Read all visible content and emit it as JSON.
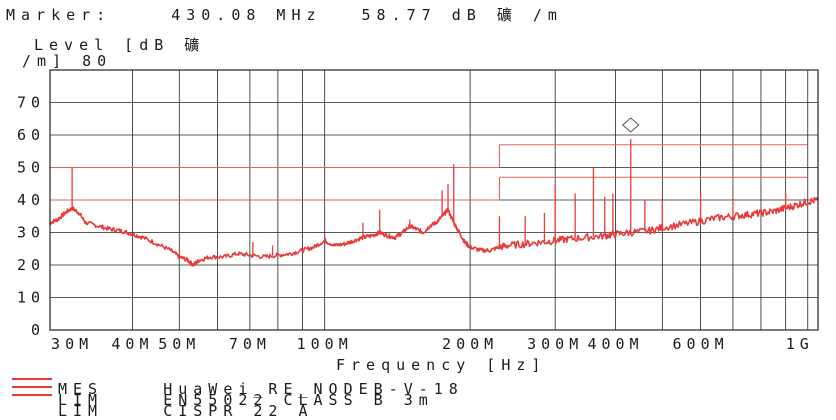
{
  "header": {
    "marker_label": "Marker:",
    "marker_freq": "430.08 MHz",
    "marker_level": "58.77 dB",
    "marker_unit_glyph": "礦",
    "marker_unit_tail": "/m",
    "level_label_line1": "Level [dB 礦",
    "level_label_line2": "/m] 80"
  },
  "legend": {
    "items": [
      {
        "kind": "MES",
        "name": "HuaWei_RE_NODEB-V-18"
      },
      {
        "kind": "LIM",
        "name": "EN55022 CLASS B 3m"
      },
      {
        "kind": "LIM",
        "name": "CISPR 22 A"
      }
    ]
  },
  "colors": {
    "trace": "#e83a3a",
    "grid": "#222222",
    "limit": "#e06060",
    "marker": "#555555"
  },
  "chart_data": {
    "type": "line",
    "title": "",
    "xlabel": "Frequency [Hz]",
    "ylabel": "Level [dB 礦/m]",
    "x_scale": "log",
    "xlim_mhz": [
      27,
      1050
    ],
    "ylim": [
      0,
      80
    ],
    "y_ticks": [
      0,
      10,
      20,
      30,
      40,
      50,
      60,
      70,
      80
    ],
    "y_tick_labels": [
      "0",
      "10",
      "20",
      "30",
      "40",
      "50",
      "60",
      "70",
      "80"
    ],
    "x_ticks_mhz": [
      30,
      40,
      50,
      70,
      100,
      200,
      300,
      400,
      600,
      1000
    ],
    "x_tick_labels": [
      "30M",
      "40M",
      "50M",
      "70M",
      "100M",
      "200M",
      "300M",
      "400M",
      "600M",
      "1G"
    ],
    "grid": true,
    "marker": {
      "freq_mhz": 430.08,
      "level": 58.77
    },
    "limits": [
      {
        "name": "EN55022 CLASS B 3m",
        "segments": [
          {
            "x": [
              27,
              230
            ],
            "y": 40
          },
          {
            "x": [
              230,
              1000
            ],
            "y": 47
          }
        ]
      },
      {
        "name": "CISPR 22 A",
        "segments": [
          {
            "x": [
              27,
              230
            ],
            "y": 50
          },
          {
            "x": [
              230,
              1000
            ],
            "y": 57
          }
        ]
      }
    ],
    "series": [
      {
        "name": "HuaWei_RE_NODEB-V-18",
        "points": [
          [
            27,
            33
          ],
          [
            28,
            34
          ],
          [
            29,
            36
          ],
          [
            30,
            37.5
          ],
          [
            31,
            36
          ],
          [
            32,
            33
          ],
          [
            34,
            32
          ],
          [
            36,
            31
          ],
          [
            38,
            30.5
          ],
          [
            40,
            29.5
          ],
          [
            42,
            28.5
          ],
          [
            45,
            26.5
          ],
          [
            48,
            24.5
          ],
          [
            50,
            22.5
          ],
          [
            52,
            21.5
          ],
          [
            53.5,
            20
          ],
          [
            55,
            21.5
          ],
          [
            58,
            22.5
          ],
          [
            62,
            22.5
          ],
          [
            66,
            23.5
          ],
          [
            70,
            23
          ],
          [
            75,
            22.5
          ],
          [
            80,
            23
          ],
          [
            85,
            23.5
          ],
          [
            90,
            24.5
          ],
          [
            95,
            25.5
          ],
          [
            100,
            27.5
          ],
          [
            105,
            26
          ],
          [
            110,
            26.5
          ],
          [
            115,
            27.5
          ],
          [
            120,
            28.5
          ],
          [
            125,
            29
          ],
          [
            130,
            30
          ],
          [
            135,
            29
          ],
          [
            140,
            28.5
          ],
          [
            145,
            30
          ],
          [
            150,
            32
          ],
          [
            155,
            31
          ],
          [
            160,
            30
          ],
          [
            165,
            32
          ],
          [
            170,
            33
          ],
          [
            175,
            35
          ],
          [
            180,
            37
          ],
          [
            185,
            33
          ],
          [
            190,
            30
          ],
          [
            195,
            27
          ],
          [
            200,
            25.5
          ],
          [
            210,
            24.5
          ],
          [
            220,
            24.5
          ],
          [
            230,
            25.5
          ],
          [
            240,
            26
          ],
          [
            260,
            26.5
          ],
          [
            280,
            27
          ],
          [
            300,
            27.5
          ],
          [
            320,
            28
          ],
          [
            350,
            28.5
          ],
          [
            380,
            29
          ],
          [
            400,
            29.5
          ],
          [
            430,
            30
          ],
          [
            470,
            30.5
          ],
          [
            500,
            31.5
          ],
          [
            550,
            32.5
          ],
          [
            600,
            33.5
          ],
          [
            650,
            34.5
          ],
          [
            700,
            35
          ],
          [
            750,
            35.5
          ],
          [
            800,
            36
          ],
          [
            850,
            36.5
          ],
          [
            900,
            37.5
          ],
          [
            950,
            38.5
          ],
          [
            1000,
            39.5
          ],
          [
            1050,
            40
          ]
        ],
        "spikes": [
          [
            30,
            50
          ],
          [
            71,
            27
          ],
          [
            78,
            26
          ],
          [
            100,
            29
          ],
          [
            120,
            33
          ],
          [
            130,
            37
          ],
          [
            150,
            34
          ],
          [
            175,
            43
          ],
          [
            180,
            45
          ],
          [
            185,
            51
          ],
          [
            230,
            35
          ],
          [
            260,
            35
          ],
          [
            285,
            36
          ],
          [
            300,
            45
          ],
          [
            330,
            42
          ],
          [
            360,
            50
          ],
          [
            380,
            41
          ],
          [
            395,
            42
          ],
          [
            430.08,
            58.77
          ],
          [
            460,
            40
          ],
          [
            500,
            40
          ],
          [
            600,
            42
          ],
          [
            700,
            40
          ],
          [
            900,
            42
          ]
        ]
      }
    ]
  }
}
